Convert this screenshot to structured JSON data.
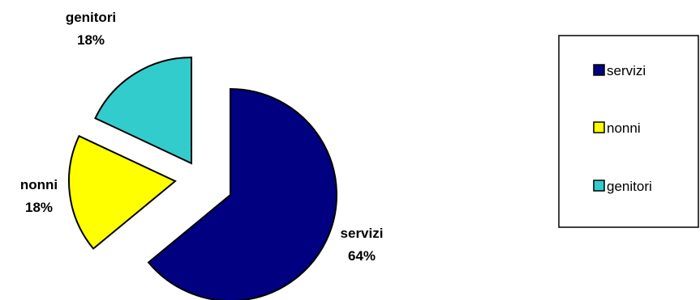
{
  "chart_data": {
    "type": "pie",
    "title": "",
    "categories": [
      "servizi",
      "nonni",
      "genitori"
    ],
    "values": [
      64,
      18,
      18
    ],
    "value_labels": [
      "64%",
      "18%",
      "18%"
    ],
    "colors": [
      "#000080",
      "#ffff00",
      "#33cccc"
    ],
    "exploded": true,
    "legend": {
      "position": "right",
      "entries": [
        "servizi",
        "nonni",
        "genitori"
      ]
    }
  }
}
